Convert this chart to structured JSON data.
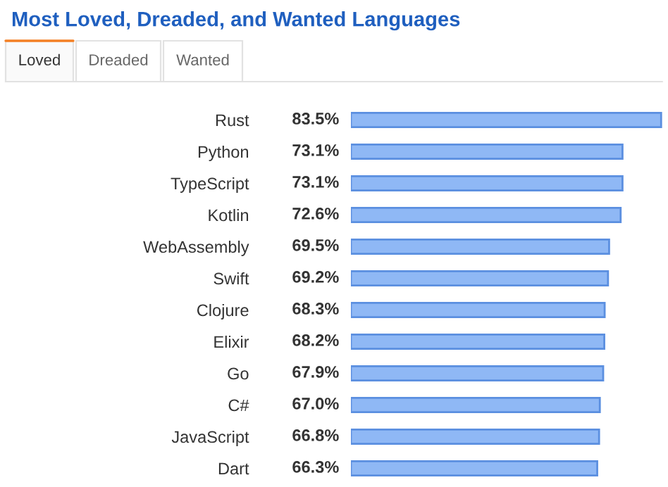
{
  "chart_data": {
    "type": "bar",
    "orientation": "horizontal",
    "title": "Most Loved, Dreaded, and Wanted Languages",
    "annotations": [
      "Loved",
      "Dreaded",
      "Wanted"
    ],
    "categories": [
      "Rust",
      "Python",
      "TypeScript",
      "Kotlin",
      "WebAssembly",
      "Swift",
      "Clojure",
      "Elixir",
      "Go",
      "C#",
      "JavaScript",
      "Dart"
    ],
    "values": [
      83.5,
      73.1,
      73.1,
      72.6,
      69.5,
      69.2,
      68.3,
      68.2,
      67.9,
      67.0,
      66.8,
      66.3
    ],
    "value_labels": [
      "83.5%",
      "73.1%",
      "73.1%",
      "72.6%",
      "69.5%",
      "69.2%",
      "68.3%",
      "68.2%",
      "67.9%",
      "67.0%",
      "66.8%",
      "66.3%"
    ],
    "color": "#8fb8f5"
  }
}
